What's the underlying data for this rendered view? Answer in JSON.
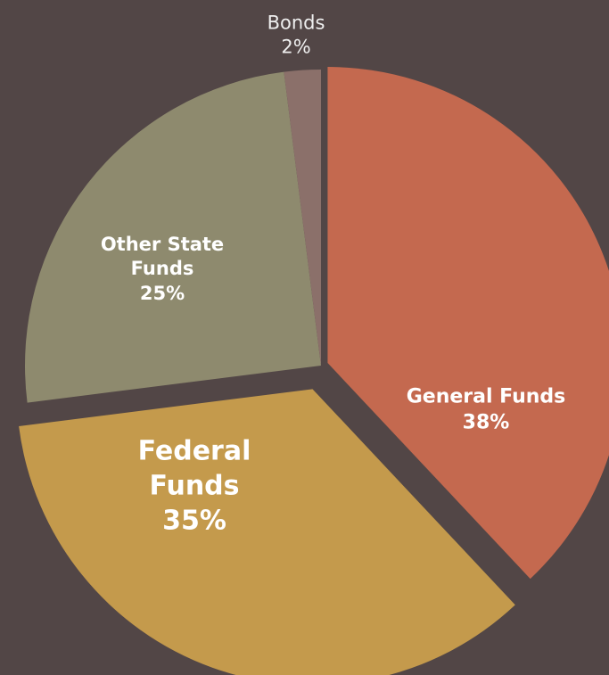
{
  "chart_data": {
    "type": "pie",
    "categories": [
      "General Funds",
      "Federal Funds",
      "Other State Funds",
      "Bonds"
    ],
    "values": [
      38,
      35,
      25,
      2
    ],
    "value_labels": [
      "38%",
      "35%",
      "25%",
      "2%"
    ],
    "colors": [
      "#c4694f",
      "#c49a4c",
      "#8e8a6e",
      "#8b706a"
    ]
  }
}
